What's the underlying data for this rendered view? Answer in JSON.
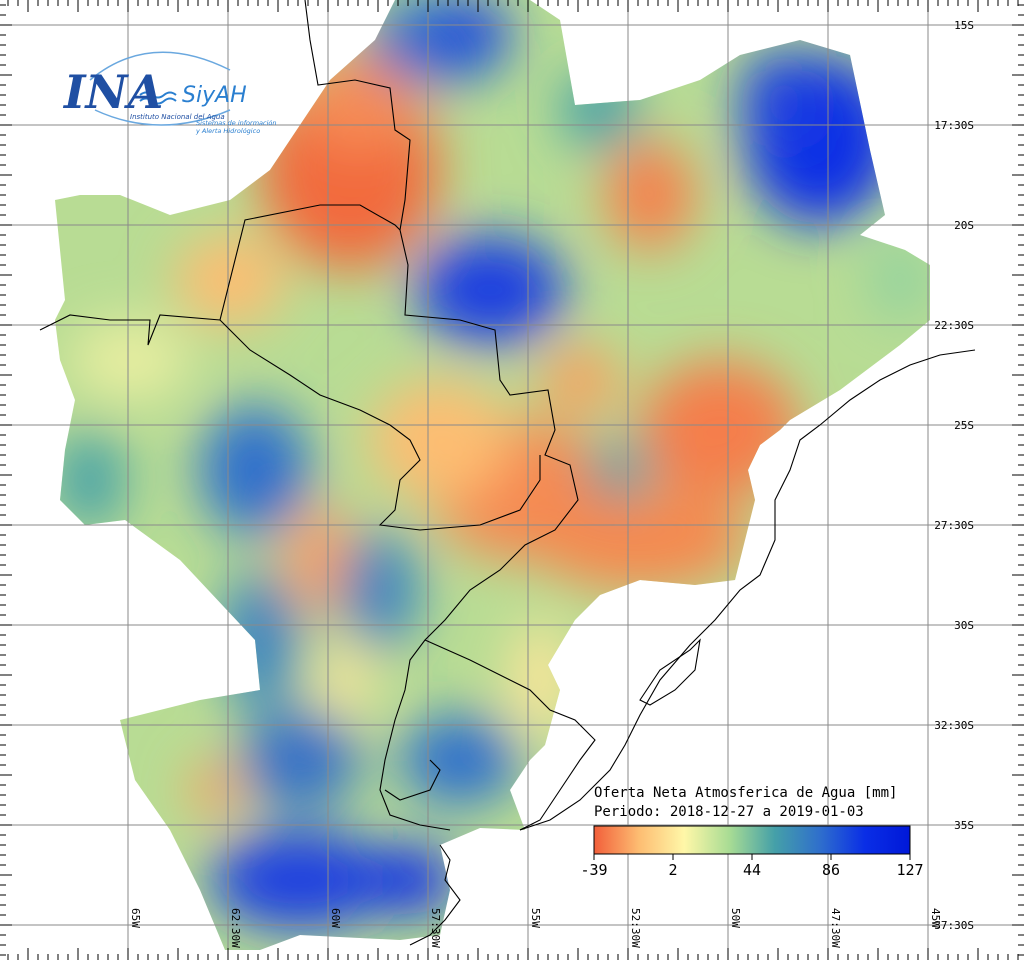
{
  "logo": {
    "brand": "INA",
    "system": "SiyAH",
    "institute": "Instituto Nacional del Agua",
    "subtitle_line1": "Sistemas de información",
    "subtitle_line2": "y Alerta Hidrológico"
  },
  "legend": {
    "title": "Oferta Neta Atmosferica de Agua [mm]",
    "period": "Periodo: 2018-12-27 a 2019-01-03",
    "ticks": [
      "-39",
      "2",
      "44",
      "86",
      "127"
    ],
    "colors": [
      "#f25f3a",
      "#fdbd72",
      "#fff7a8",
      "#a8dc94",
      "#45a0a8",
      "#2f6fcc",
      "#0a2ee6",
      "#0018d8"
    ]
  },
  "grid": {
    "lat_labels": [
      "15S",
      "17:30S",
      "20S",
      "22:30S",
      "25S",
      "27:30S",
      "30S",
      "32:30S",
      "35S",
      "37:30S"
    ],
    "lon_labels": [
      "65W",
      "62:30W",
      "60W",
      "57:30W",
      "55W",
      "52:30W",
      "50W",
      "47:30W",
      "45W"
    ]
  },
  "colors": {
    "dry": "#f26a3e",
    "neutral": "#fdf2a0",
    "wet": "#0a2ee6",
    "grid": "#8a8a8a",
    "border": "#000000"
  }
}
